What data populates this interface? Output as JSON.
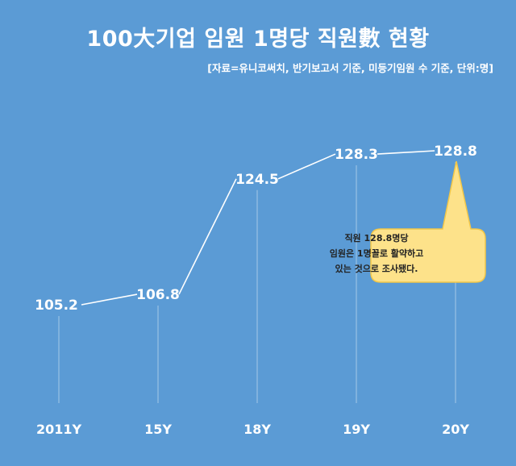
{
  "title": "100大기업 임원 1명당 직원數 현황",
  "subtitle": "[자료=유니코써치, 반기보고서 기준, 미등기임원 수 기준, 단위:명]",
  "callout": {
    "lines": [
      "직원 128.8명당",
      "임원은 1명꼴로 활약하고",
      "있는 것으로 조사됐다."
    ]
  },
  "colors": {
    "background": "#5b9bd5",
    "line": "#ffffff",
    "callout_fill": "#fde28a",
    "callout_stroke": "#f3c747"
  },
  "chart_data": {
    "type": "line",
    "categories": [
      "2011Y",
      "15Y",
      "18Y",
      "19Y",
      "20Y"
    ],
    "series": [
      {
        "values": [
          105.2,
          106.8,
          124.5,
          128.3,
          128.8
        ]
      }
    ],
    "data_labels": [
      "105.2",
      "106.8",
      "124.5",
      "128.3",
      "128.8"
    ],
    "ylim": [
      100,
      132
    ],
    "grid": false,
    "annotation": "직원 128.8명당 임원은 1명꼴로 활약하고 있는 것으로 조사됐다."
  }
}
